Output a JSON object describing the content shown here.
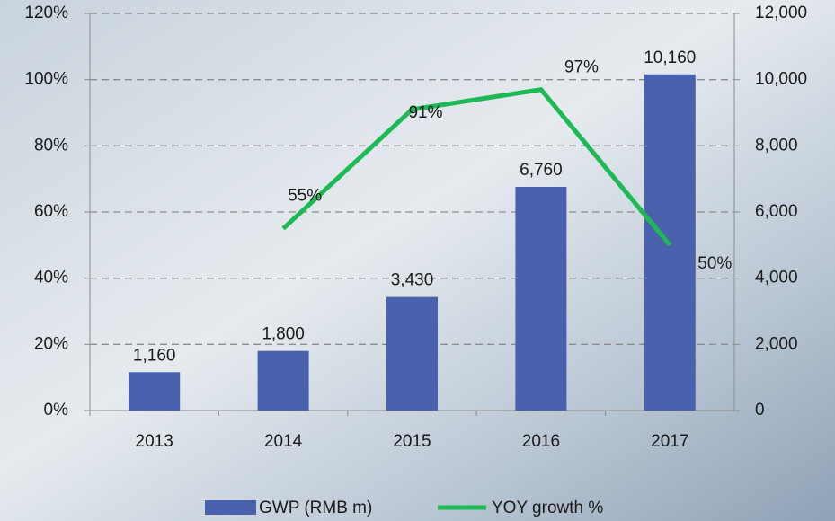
{
  "chart_data": {
    "type": "combo",
    "categories": [
      "2013",
      "2014",
      "2015",
      "2016",
      "2017"
    ],
    "series": [
      {
        "name": "GWP (RMB m)",
        "type": "bar",
        "axis": "y2",
        "color": "#4a62ad",
        "values": [
          1160,
          1800,
          3430,
          6760,
          10160
        ],
        "value_labels": [
          "1,160",
          "1,800",
          "3,430",
          "6,760",
          "10,160"
        ]
      },
      {
        "name": "YOY growth %",
        "type": "line",
        "axis": "y",
        "color": "#1db954",
        "values": [
          null,
          55,
          91,
          97,
          50
        ],
        "value_labels": [
          null,
          "55%",
          "91%",
          "97%",
          "50%"
        ]
      }
    ],
    "ylim": [
      0,
      120
    ],
    "yticks": [
      {
        "value": 0,
        "label": "0%"
      },
      {
        "value": 20,
        "label": "20%"
      },
      {
        "value": 40,
        "label": "40%"
      },
      {
        "value": 60,
        "label": "60%"
      },
      {
        "value": 80,
        "label": "80%"
      },
      {
        "value": 100,
        "label": "100%"
      },
      {
        "value": 120,
        "label": "120%"
      }
    ],
    "y2lim": [
      0,
      12000
    ],
    "y2ticks": [
      0,
      {
        "value": 2000,
        "label": "2,000"
      },
      {
        "value": 4000,
        "label": "4,000"
      },
      {
        "value": 6000,
        "label": "6,000"
      },
      {
        "value": 8000,
        "label": "8,000"
      },
      {
        "value": 10000,
        "label": "10,000"
      },
      {
        "value": 12000,
        "label": "12,000"
      }
    ],
    "grid": true,
    "legend": "bottom"
  }
}
